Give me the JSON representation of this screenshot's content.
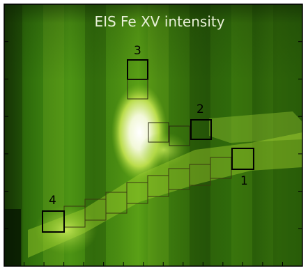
{
  "title": "EIS Fe XV intensity",
  "colors": {
    "background": "#ffffff",
    "frame": "#000000",
    "title_text": "#e8f0d8",
    "label_text": "#000000",
    "box_outline": "#000000",
    "chain_outline": "#3a3a10"
  },
  "loop_labels": [
    "1",
    "2",
    "3",
    "4"
  ],
  "ticks": {
    "bottom_count": 14,
    "left_count": 6,
    "right_count": 6
  }
}
